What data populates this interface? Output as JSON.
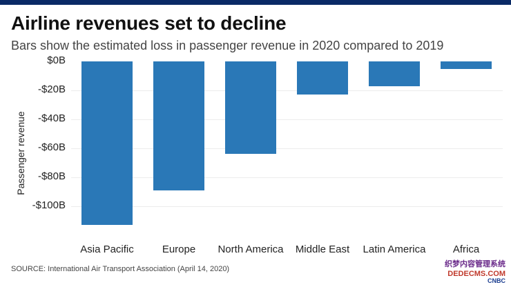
{
  "chart_data": {
    "type": "bar",
    "title": "Airline revenues set to decline",
    "subtitle": "Bars show the estimated loss in passenger revenue in 2020 compared to 2019",
    "xlabel": "",
    "ylabel": "Passenger revenue",
    "categories": [
      "Asia Pacific",
      "Europe",
      "North America",
      "Middle East",
      "Latin America",
      "Africa"
    ],
    "values": [
      -113,
      -89,
      -64,
      -23,
      -17,
      -5
    ],
    "yticks": [
      {
        "value": 0,
        "label": "$0B"
      },
      {
        "value": -20,
        "label": "-$20B"
      },
      {
        "value": -40,
        "label": "-$40B"
      },
      {
        "value": -60,
        "label": "-$60B"
      },
      {
        "value": -80,
        "label": "-$80B"
      },
      {
        "value": -100,
        "label": "-$100B"
      }
    ],
    "ylim": [
      -117,
      0
    ],
    "grid": true,
    "bar_color": "#2a78b7"
  },
  "source": "SOURCE: International Air Transport Association (April 14, 2020)",
  "watermark": {
    "line1": "织梦内容管理系统",
    "line2": "DEDECMS.COM",
    "brand": "CNBC"
  },
  "colors": {
    "topbar": "#0a2a66",
    "bar": "#2a78b7",
    "grid": "#ececec"
  }
}
